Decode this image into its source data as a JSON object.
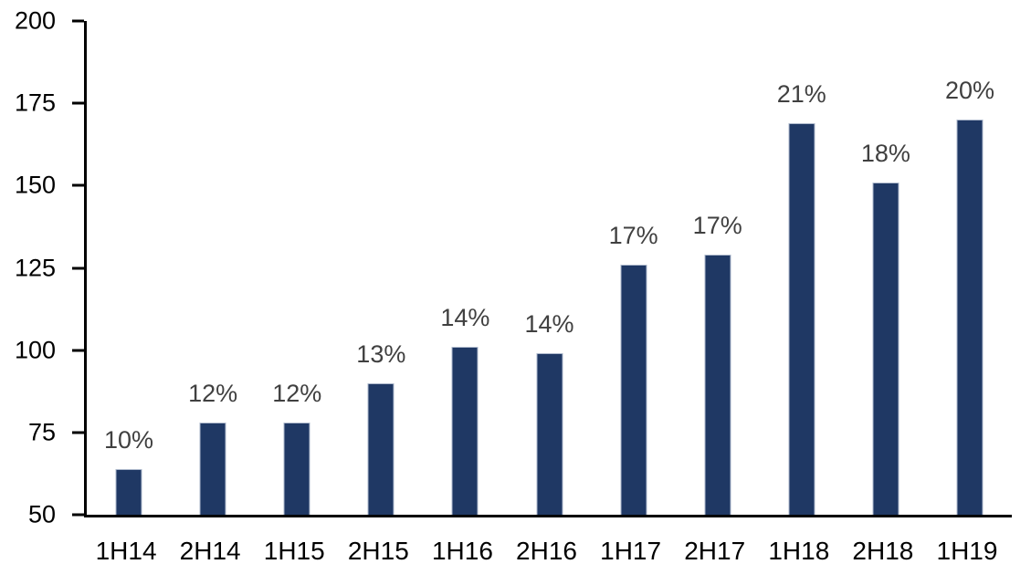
{
  "chart_data": {
    "type": "bar",
    "title": "",
    "xlabel": "",
    "ylabel": "",
    "categories": [
      "1H14",
      "2H14",
      "1H15",
      "2H15",
      "1H16",
      "2H16",
      "1H17",
      "2H17",
      "1H18",
      "2H18",
      "1H19"
    ],
    "values": [
      64,
      78,
      78,
      90,
      101,
      99,
      126,
      129,
      169,
      151,
      170
    ],
    "data_labels": [
      "10%",
      "12%",
      "12%",
      "13%",
      "14%",
      "14%",
      "17%",
      "17%",
      "21%",
      "18%",
      "20%"
    ],
    "ylim": [
      50,
      200
    ],
    "yticks": [
      50,
      75,
      100,
      125,
      150,
      175,
      200
    ],
    "grid": false,
    "legend": false,
    "colors": {
      "bar_fill": "#1F3864",
      "bar_border": "#AEB9CC",
      "data_label_text": "#404040",
      "axis_line": "#000000",
      "axis_text": "#000000",
      "background": "#FFFFFF"
    }
  }
}
